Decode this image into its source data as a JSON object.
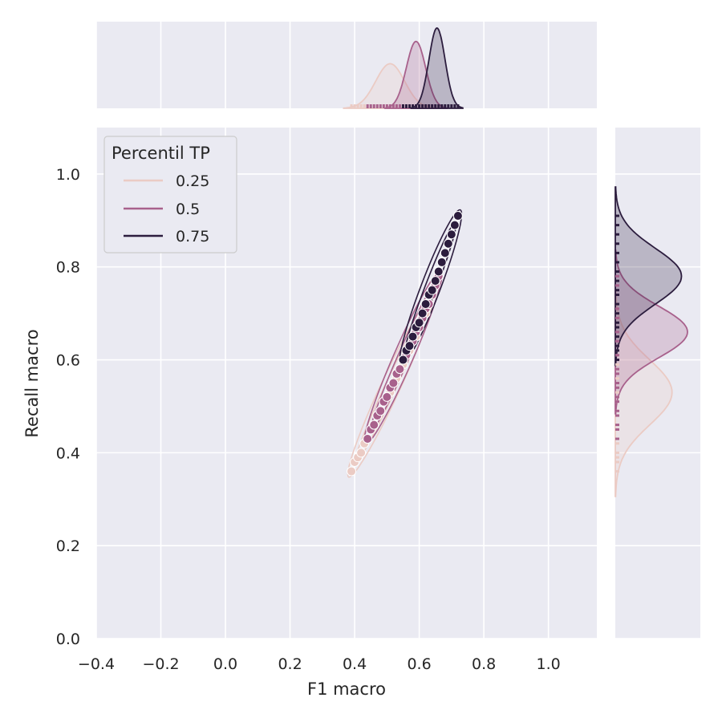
{
  "chart_data": {
    "type": "scatter",
    "title": "",
    "xlabel": "F1 macro",
    "ylabel": "Recall macro",
    "xlim": [
      -0.4,
      1.15
    ],
    "ylim": [
      0.0,
      1.1
    ],
    "xticks": [
      "−0.4",
      "−0.2",
      "0.0",
      "0.2",
      "0.4",
      "0.6",
      "0.8",
      "1.0"
    ],
    "yticks": [
      "0.0",
      "0.2",
      "0.4",
      "0.6",
      "0.8",
      "1.0"
    ],
    "grid": true,
    "legend": {
      "title": "Percentil TP",
      "placement": "top-left"
    },
    "marginals": {
      "top": "kde of F1 macro by series",
      "right": "kde of Recall macro by series"
    },
    "series": [
      {
        "name": "0.25",
        "color": "#ebcbc4",
        "x": [
          0.39,
          0.4,
          0.41,
          0.42,
          0.43,
          0.44,
          0.45,
          0.46,
          0.47,
          0.48,
          0.49,
          0.5,
          0.51,
          0.52,
          0.53,
          0.54,
          0.55,
          0.56,
          0.57,
          0.58,
          0.59,
          0.6,
          0.61,
          0.62,
          0.63
        ],
        "y": [
          0.36,
          0.38,
          0.39,
          0.4,
          0.42,
          0.43,
          0.45,
          0.46,
          0.48,
          0.49,
          0.51,
          0.52,
          0.53,
          0.55,
          0.56,
          0.58,
          0.59,
          0.61,
          0.62,
          0.64,
          0.65,
          0.67,
          0.69,
          0.7,
          0.72
        ],
        "f1_mean": 0.51,
        "f1_sd": 0.045,
        "recall_mean": 0.53,
        "recall_sd": 0.07
      },
      {
        "name": "0.5",
        "color": "#a8618c",
        "x": [
          0.44,
          0.45,
          0.46,
          0.47,
          0.48,
          0.49,
          0.5,
          0.51,
          0.52,
          0.53,
          0.54,
          0.55,
          0.56,
          0.57,
          0.58,
          0.59,
          0.6,
          0.61,
          0.62,
          0.63,
          0.64,
          0.65,
          0.66
        ],
        "y": [
          0.43,
          0.45,
          0.46,
          0.48,
          0.49,
          0.51,
          0.52,
          0.54,
          0.55,
          0.57,
          0.58,
          0.6,
          0.61,
          0.63,
          0.64,
          0.66,
          0.67,
          0.69,
          0.71,
          0.72,
          0.74,
          0.76,
          0.78
        ],
        "f1_mean": 0.59,
        "f1_sd": 0.03,
        "recall_mean": 0.66,
        "recall_sd": 0.055
      },
      {
        "name": "0.75",
        "color": "#2c1d3e",
        "x": [
          0.55,
          0.56,
          0.57,
          0.58,
          0.59,
          0.6,
          0.61,
          0.62,
          0.63,
          0.64,
          0.65,
          0.66,
          0.67,
          0.68,
          0.69,
          0.7,
          0.71,
          0.72
        ],
        "y": [
          0.6,
          0.62,
          0.63,
          0.65,
          0.67,
          0.68,
          0.7,
          0.72,
          0.74,
          0.75,
          0.77,
          0.79,
          0.81,
          0.83,
          0.85,
          0.87,
          0.89,
          0.91
        ],
        "f1_mean": 0.655,
        "f1_sd": 0.025,
        "recall_mean": 0.78,
        "recall_sd": 0.06
      }
    ]
  }
}
